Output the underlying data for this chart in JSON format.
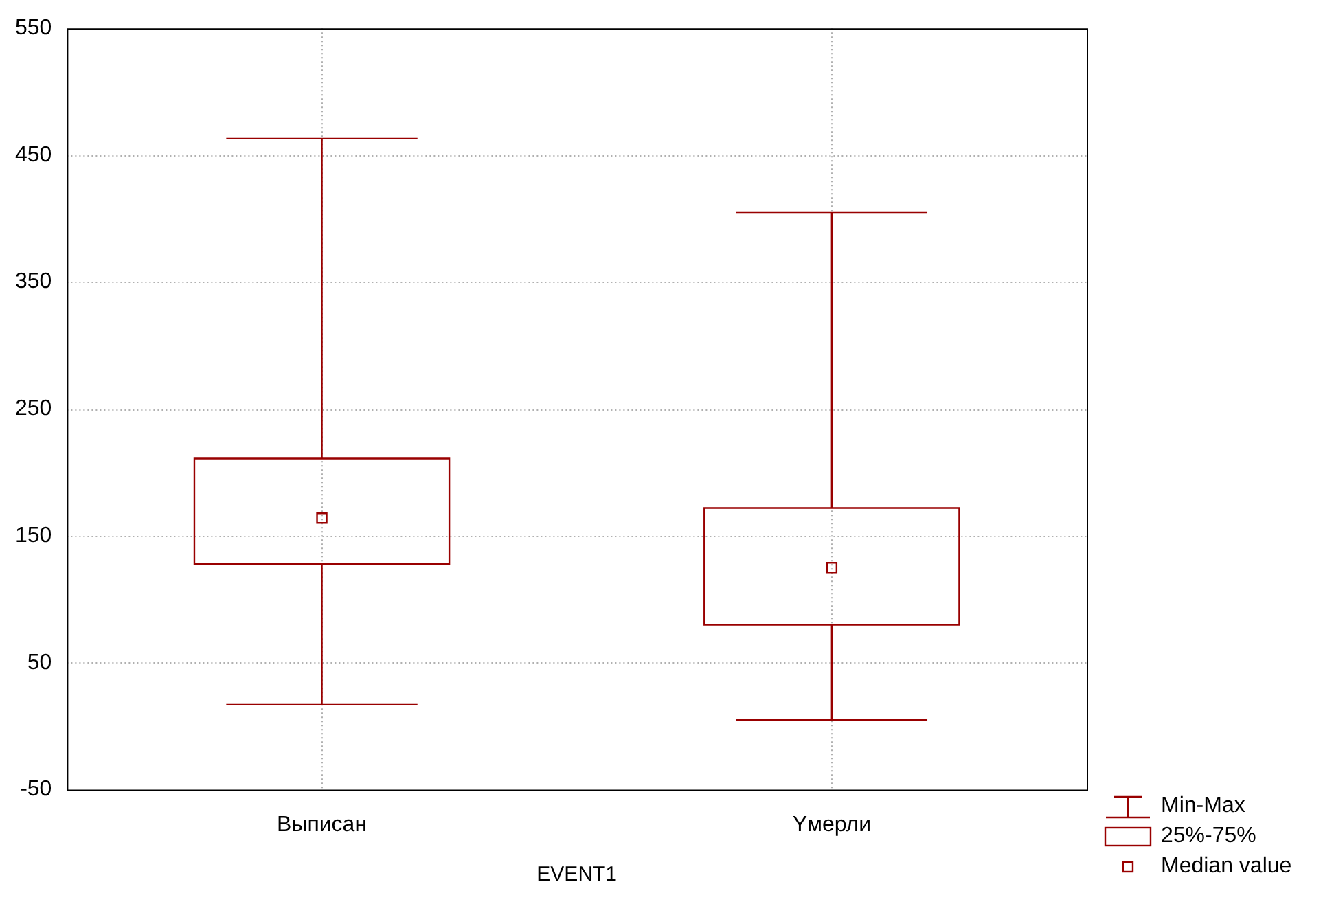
{
  "chart_data": {
    "type": "box",
    "xlabel": "EVENT1",
    "categories": [
      "Выписан",
      "Yмерли"
    ],
    "series": [
      {
        "color": "#990000",
        "boxes": [
          {
            "low": 17,
            "q1": 128,
            "median": 164,
            "q3": 211,
            "high": 463
          },
          {
            "low": 5,
            "q1": 80,
            "median": 125,
            "q3": 172,
            "high": 405
          }
        ]
      }
    ],
    "ylim": [
      -50,
      550
    ],
    "yticks": [
      -50,
      50,
      150,
      250,
      350,
      450,
      550
    ],
    "grid": true,
    "marker": "square",
    "annotations": [
      "Min-Max",
      "25%-75%",
      "Median value"
    ]
  }
}
